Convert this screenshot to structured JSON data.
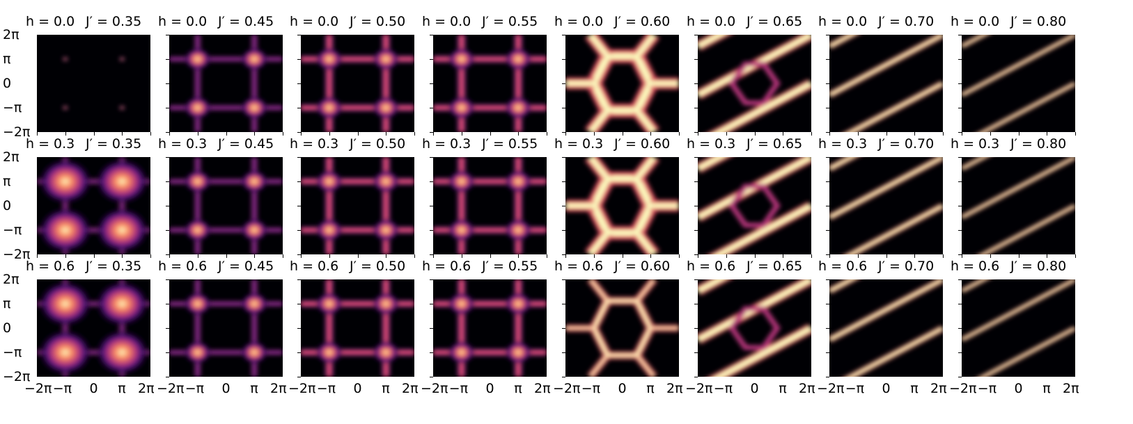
{
  "chart_data": {
    "type": "heatmap",
    "colormap": "magma",
    "colormap_stops": [
      "#000004",
      "#1c1044",
      "#4f127b",
      "#812581",
      "#b5367a",
      "#e55064",
      "#fb8761",
      "#fec287",
      "#fcfdbf"
    ],
    "rows": [
      {
        "h": "0.0"
      },
      {
        "h": "0.3"
      },
      {
        "h": "0.6"
      }
    ],
    "columns": [
      {
        "jp": "0.35"
      },
      {
        "jp": "0.45"
      },
      {
        "jp": "0.50"
      },
      {
        "jp": "0.55"
      },
      {
        "jp": "0.60"
      },
      {
        "jp": "0.65"
      },
      {
        "jp": "0.70"
      },
      {
        "jp": "0.80"
      }
    ],
    "title_h_prefix": "h = ",
    "title_j_prefix": "J′ = ",
    "xlim": [
      "−2π",
      "2π"
    ],
    "ylim": [
      "−2π",
      "2π"
    ],
    "xticks": [
      "−2π",
      "−π",
      "0",
      "π",
      "2π"
    ],
    "yticks": [
      "2π",
      "π",
      "0",
      "−π",
      "−2π"
    ]
  }
}
